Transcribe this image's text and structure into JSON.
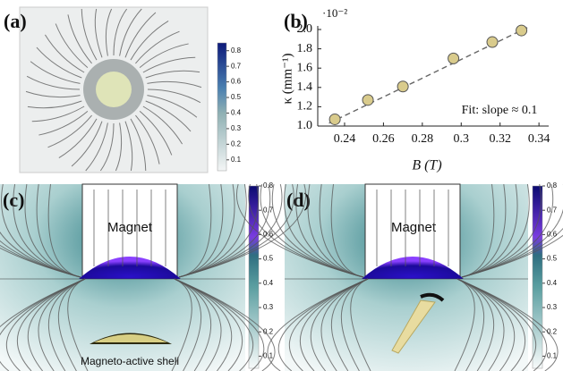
{
  "panels": [
    "(a)",
    "(b)",
    "(c)",
    "(d)"
  ],
  "colorbars": [
    {
      "lim": [
        0.03,
        0.85
      ],
      "ticks": [
        0.1,
        0.2,
        0.3,
        0.4,
        0.5,
        0.6,
        0.7,
        0.8
      ]
    },
    {
      "lim": [
        0.05,
        0.8
      ],
      "ticks": [
        0.1,
        0.2,
        0.3,
        0.4,
        0.5,
        0.6,
        0.7,
        0.8
      ]
    },
    {
      "lim": [
        0.05,
        0.8
      ],
      "ticks": [
        0.1,
        0.2,
        0.3,
        0.4,
        0.5,
        0.6,
        0.7,
        0.8
      ]
    }
  ],
  "labels": {
    "magnet": "Magnet",
    "shell": "Magneto-active shell"
  },
  "chart_data": {
    "type": "scatter",
    "xlabel": "B (T)",
    "ylabel": "κ (mm⁻¹)",
    "scale": "·10⁻²",
    "annotation": "Fit: slope ≈ 0.1",
    "color": "#d9cb8c",
    "x": [
      0.235,
      0.252,
      0.27,
      0.296,
      0.316,
      0.331
    ],
    "values": [
      1.07,
      1.27,
      1.41,
      1.7,
      1.87,
      1.99
    ],
    "fit": {
      "x": [
        0.232,
        0.334
      ],
      "values": [
        1.03,
        2.02
      ]
    },
    "xlim": [
      0.2262,
      0.345
    ],
    "ylim": [
      1.0,
      2.0
    ],
    "xticks": [
      0.24,
      0.26,
      0.28,
      0.3,
      0.32,
      0.34
    ],
    "yticks": [
      {
        "value": 1.0,
        "label": "1.0"
      },
      1.2,
      1.4,
      1.6,
      1.8,
      {
        "value": 2.0,
        "label": "2.0"
      }
    ]
  }
}
